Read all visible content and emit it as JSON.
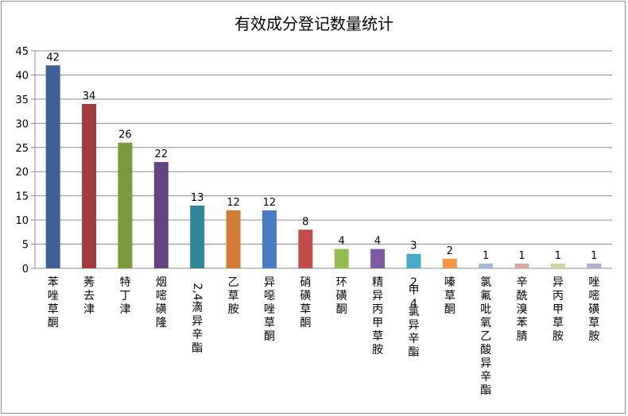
{
  "chart_data": {
    "type": "bar",
    "title": "有效成分登记数量统计",
    "xlabel": "",
    "ylabel": "",
    "ylim": [
      0,
      45
    ],
    "yticks": [
      "0",
      "5",
      "10",
      "15",
      "20",
      "25",
      "30",
      "35",
      "40",
      "45"
    ],
    "grid": true,
    "legend": "none",
    "categories": [
      "苯唑草酮",
      "莠去津",
      "特丁津",
      "烟嘧磺隆",
      "2,4-滴异辛酯",
      "乙草胺",
      "异噁唑草酮",
      "硝磺草酮",
      "环磺酮",
      "精异丙甲草胺",
      "2甲4氯异辛酯",
      "嗪草酮",
      "氯氟吡氧乙酸异辛酯",
      "辛酰溴苯腈",
      "异丙甲草胺",
      "唑嘧磺草胺"
    ],
    "values": [
      42,
      34,
      26,
      22,
      13,
      12,
      12,
      8,
      4,
      4,
      3,
      2,
      1,
      1,
      1,
      1
    ],
    "value_labels": [
      "42",
      "34",
      "26",
      "22",
      "13",
      "12",
      "12",
      "8",
      "4",
      "4",
      "3",
      "2",
      "1",
      "1",
      "1",
      "1"
    ],
    "colors": [
      "#3b6197",
      "#a23b3b",
      "#7b9a3c",
      "#64447f",
      "#2f8898",
      "#d17d33",
      "#4a7cc4",
      "#c24c4a",
      "#94bd4f",
      "#7d5ba3",
      "#48abc6",
      "#f59447",
      "#a6b8d9",
      "#dba5a3",
      "#c5d9a0",
      "#b9abcf"
    ]
  }
}
